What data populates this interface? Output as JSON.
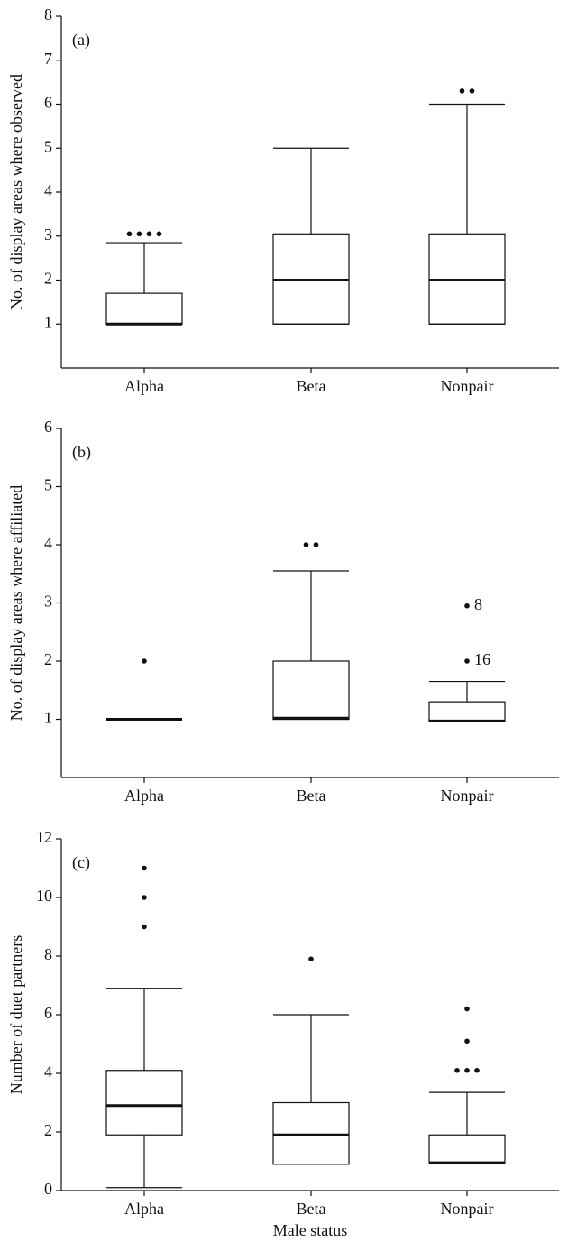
{
  "chart_data": [
    {
      "type": "box",
      "panel_label": "(a)",
      "ylabel": "No. of display areas where observed",
      "categories": [
        "Alpha",
        "Beta",
        "Nonpair"
      ],
      "boxes": [
        {
          "min": 1,
          "q1": 1,
          "median": 1,
          "q3": 1.7,
          "max": 2.85,
          "outliers": [
            3.05,
            3.05,
            3.05,
            3.05
          ]
        },
        {
          "min": 1,
          "q1": 1,
          "median": 2,
          "q3": 3.05,
          "max": 5,
          "outliers": []
        },
        {
          "min": 1,
          "q1": 1,
          "median": 2,
          "q3": 3.05,
          "max": 6,
          "outliers": [
            6.3,
            6.3
          ]
        }
      ],
      "ylim": [
        0,
        8
      ],
      "yticks": [
        1,
        2,
        3,
        4,
        5,
        6,
        7,
        8
      ]
    },
    {
      "type": "box",
      "panel_label": "(b)",
      "ylabel": "No. of display areas where affiliated",
      "categories": [
        "Alpha",
        "Beta",
        "Nonpair"
      ],
      "boxes": [
        {
          "min": 1,
          "q1": 1,
          "median": 1,
          "q3": 1,
          "max": 1,
          "outliers": [
            2
          ]
        },
        {
          "min": 1,
          "q1": 1,
          "median": 1.02,
          "q3": 2,
          "max": 3.55,
          "outliers": [
            4,
            4
          ]
        },
        {
          "min": 0.97,
          "q1": 0.97,
          "median": 0.97,
          "q3": 1.3,
          "max": 1.65,
          "outliers": [
            2,
            2.95
          ],
          "outlier_labels": [
            "16",
            "8"
          ]
        }
      ],
      "ylim": [
        0,
        6
      ],
      "yticks": [
        1,
        2,
        3,
        4,
        5,
        6
      ]
    },
    {
      "type": "box",
      "panel_label": "(c)",
      "ylabel": "Number of duet partners",
      "xlabel": "Male status",
      "categories": [
        "Alpha",
        "Beta",
        "Nonpair"
      ],
      "boxes": [
        {
          "min": 0.1,
          "q1": 1.9,
          "median": 2.9,
          "q3": 4.1,
          "max": 6.9,
          "outliers": [
            9,
            10,
            11
          ]
        },
        {
          "min": 0.9,
          "q1": 0.9,
          "median": 1.9,
          "q3": 3,
          "max": 6,
          "outliers": [
            7.9
          ]
        },
        {
          "min": 0.95,
          "q1": 0.95,
          "median": 0.95,
          "q3": 1.9,
          "max": 3.35,
          "outliers": [
            4.1,
            4.1,
            4.1,
            5.1,
            6.2
          ]
        }
      ],
      "ylim": [
        0,
        12
      ],
      "yticks": [
        0,
        2,
        4,
        6,
        8,
        10,
        12
      ]
    }
  ]
}
